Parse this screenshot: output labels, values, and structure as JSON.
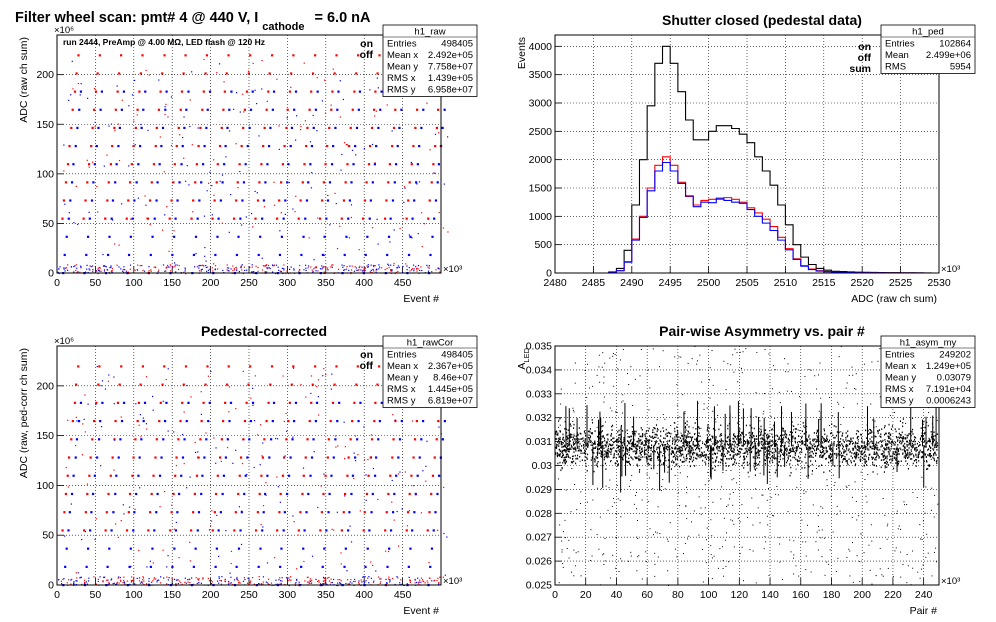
{
  "main_title": {
    "prefix": "Filter wheel scan: pmt#   4 @   440 V, I",
    "subscript": "cathode",
    "suffix": "= 6.0 nA"
  },
  "colors": {
    "on": "#ff0000",
    "off": "#0000ff",
    "sum": "#000000"
  },
  "chart_data": [
    {
      "id": "raw",
      "type": "scatter",
      "title": "",
      "annotation": "run 2444, PreAmp @ 4.00 MΩ, LED flash @  120 Hz",
      "xlabel": "Event #",
      "ylabel": "ADC (raw ch sum)",
      "x_exponent": "×10³",
      "y_exponent": "×10⁶",
      "xlim": [
        0,
        500
      ],
      "ylim": [
        0,
        240
      ],
      "xticks": [
        0,
        50,
        100,
        150,
        200,
        250,
        300,
        350,
        400,
        450
      ],
      "yticks": [
        0,
        50,
        100,
        150,
        200
      ],
      "grid": true,
      "legend": [
        "on",
        "off"
      ],
      "level_step": 18.3,
      "levels_on_start": 3,
      "levels_off_start": 0,
      "stats": {
        "name": "h1_raw",
        "rows": [
          [
            "Entries",
            "498405"
          ],
          [
            "Mean x",
            "2.492e+05"
          ],
          [
            "Mean y",
            "7.758e+07"
          ],
          [
            "RMS x",
            "1.439e+05"
          ],
          [
            "RMS y",
            "6.958e+07"
          ]
        ]
      }
    },
    {
      "id": "ped",
      "type": "line",
      "title": "Shutter closed (pedestal data)",
      "xlabel": "ADC (raw ch sum)",
      "ylabel": "Events",
      "x_exponent": "×10³",
      "xlim": [
        2480,
        2530
      ],
      "ylim": [
        0,
        4200
      ],
      "xticks": [
        2480,
        2485,
        2490,
        2495,
        2500,
        2505,
        2510,
        2515,
        2520,
        2525,
        2530
      ],
      "yticks": [
        0,
        500,
        1000,
        1500,
        2000,
        2500,
        3000,
        3500,
        4000
      ],
      "grid": true,
      "legend": [
        "on",
        "off",
        "sum"
      ],
      "x": [
        2480,
        2481,
        2482,
        2483,
        2484,
        2485,
        2486,
        2487,
        2488,
        2489,
        2490,
        2491,
        2492,
        2493,
        2494,
        2495,
        2496,
        2497,
        2498,
        2499,
        2500,
        2501,
        2502,
        2503,
        2504,
        2505,
        2506,
        2507,
        2508,
        2509,
        2510,
        2511,
        2512,
        2513,
        2514,
        2515,
        2516,
        2517,
        2518,
        2519,
        2520,
        2521,
        2522,
        2523,
        2524,
        2525,
        2526,
        2527,
        2528,
        2529
      ],
      "series": [
        {
          "name": "sum",
          "values": [
            0,
            0,
            0,
            0,
            0,
            0,
            0,
            20,
            80,
            400,
            1200,
            2000,
            2950,
            3700,
            4000,
            3700,
            3200,
            2700,
            2350,
            2350,
            2500,
            2600,
            2600,
            2550,
            2450,
            2300,
            2050,
            1800,
            1550,
            1200,
            850,
            500,
            280,
            150,
            80,
            50,
            30,
            25,
            20,
            15,
            12,
            10,
            8,
            6,
            5,
            4,
            3,
            2,
            1,
            0
          ]
        },
        {
          "name": "on",
          "values": [
            0,
            0,
            0,
            0,
            0,
            0,
            0,
            10,
            40,
            200,
            600,
            1000,
            1500,
            1900,
            2050,
            1900,
            1600,
            1350,
            1200,
            1280,
            1300,
            1300,
            1330,
            1300,
            1250,
            1150,
            1060,
            950,
            820,
            630,
            430,
            250,
            130,
            70,
            40,
            25,
            15,
            10,
            8,
            6,
            5,
            4,
            3,
            2,
            2,
            1,
            1,
            1,
            0,
            0
          ]
        },
        {
          "name": "off",
          "values": [
            0,
            0,
            0,
            0,
            0,
            0,
            0,
            10,
            40,
            190,
            580,
            980,
            1450,
            1800,
            1950,
            1800,
            1580,
            1360,
            1170,
            1250,
            1240,
            1320,
            1280,
            1250,
            1230,
            1120,
            1000,
            880,
            750,
            580,
            410,
            240,
            120,
            60,
            35,
            22,
            14,
            10,
            8,
            6,
            5,
            4,
            3,
            2,
            2,
            1,
            1,
            1,
            0,
            0
          ]
        }
      ],
      "stats": {
        "name": "h1_ped",
        "rows": [
          [
            "Entries",
            "102864"
          ],
          [
            "Mean",
            "2.499e+06"
          ],
          [
            "RMS",
            "5954"
          ]
        ]
      }
    },
    {
      "id": "rawCor",
      "type": "scatter",
      "title": "Pedestal-corrected",
      "xlabel": "Event #",
      "ylabel": "ADC (raw, ped-corr ch sum)",
      "x_exponent": "×10³",
      "y_exponent": "×10⁶",
      "xlim": [
        0,
        500
      ],
      "ylim": [
        0,
        240
      ],
      "xticks": [
        0,
        50,
        100,
        150,
        200,
        250,
        300,
        350,
        400,
        450
      ],
      "yticks": [
        0,
        50,
        100,
        150,
        200
      ],
      "grid": true,
      "legend": [
        "on",
        "off"
      ],
      "level_step": 18.3,
      "levels_on_start": 3,
      "levels_off_start": 0,
      "stats": {
        "name": "h1_rawCor",
        "rows": [
          [
            "Entries",
            "498405"
          ],
          [
            "Mean x",
            "2.367e+05"
          ],
          [
            "Mean y",
            "8.46e+07"
          ],
          [
            "RMS x",
            "1.445e+05"
          ],
          [
            "RMS y",
            "6.819e+07"
          ]
        ]
      }
    },
    {
      "id": "asym",
      "type": "scatter",
      "title": "Pair-wise Asymmetry vs. pair #",
      "xlabel": "Pair #",
      "ylabel": "A",
      "ylabel_sub": "LED",
      "x_exponent": "×10³",
      "xlim": [
        0,
        250
      ],
      "ylim": [
        0.025,
        0.035
      ],
      "xticks": [
        0,
        20,
        40,
        60,
        80,
        100,
        120,
        140,
        160,
        180,
        200,
        220,
        240
      ],
      "yticks": [
        0.025,
        0.026,
        0.027,
        0.028,
        0.029,
        0.03,
        0.031,
        0.032,
        0.033,
        0.034,
        0.035
      ],
      "grid": true,
      "band_center": 0.0308,
      "band_halfwidth": 0.0006,
      "stats": {
        "name": "h1_asym_my",
        "rows": [
          [
            "Entries",
            "249202"
          ],
          [
            "Mean x",
            "1.249e+05"
          ],
          [
            "Mean y",
            "0.03079"
          ],
          [
            "RMS x",
            "7.191e+04"
          ],
          [
            "RMS y",
            "0.0006243"
          ]
        ]
      }
    }
  ]
}
